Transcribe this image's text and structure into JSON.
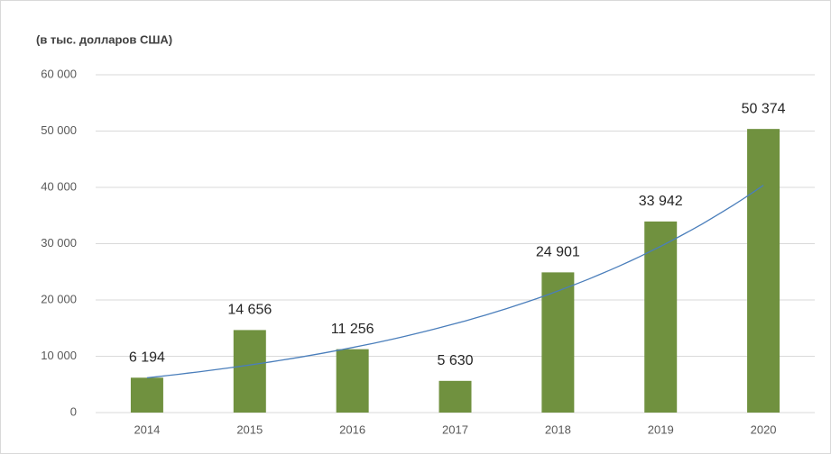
{
  "chart_data": {
    "type": "bar",
    "title": "(в тыс. долларов США)",
    "categories": [
      "2014",
      "2015",
      "2016",
      "2017",
      "2018",
      "2019",
      "2020"
    ],
    "values": [
      6194,
      14656,
      11256,
      5630,
      24901,
      33942,
      50374
    ],
    "value_labels": [
      "6 194",
      "14 656",
      "11 256",
      "5 630",
      "24 901",
      "33 942",
      "50 374"
    ],
    "color": "#70913f",
    "trendline": "exponential",
    "trendline_color": "#4a7ebb",
    "ylim": [
      0,
      60000
    ],
    "yticks": [
      0,
      {
        "value": 10000,
        "label": "10 000"
      },
      {
        "value": 20000,
        "label": "20 000"
      },
      {
        "value": 30000,
        "label": "30 000"
      },
      {
        "value": 40000,
        "label": "40 000"
      },
      {
        "value": 50000,
        "label": "50 000"
      },
      {
        "value": 60000,
        "label": "60 000"
      }
    ],
    "grid": true
  }
}
